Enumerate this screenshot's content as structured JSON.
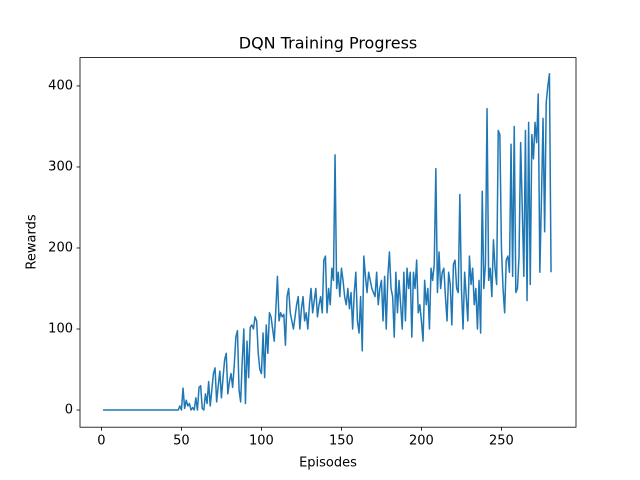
{
  "chart_data": {
    "type": "line",
    "title": "DQN Training Progress",
    "x_label": "Episodes",
    "y_label": "Rewards",
    "color": "#1f77b4",
    "x": [
      1,
      2,
      3,
      4,
      5,
      6,
      7,
      8,
      9,
      10,
      11,
      12,
      13,
      14,
      15,
      16,
      17,
      18,
      19,
      20,
      21,
      22,
      23,
      24,
      25,
      26,
      27,
      28,
      29,
      30,
      31,
      32,
      33,
      34,
      35,
      36,
      37,
      38,
      39,
      40,
      41,
      42,
      43,
      44,
      45,
      46,
      47,
      48,
      49,
      50,
      51,
      52,
      53,
      54,
      55,
      56,
      57,
      58,
      59,
      60,
      61,
      62,
      63,
      64,
      65,
      66,
      67,
      68,
      69,
      70,
      71,
      72,
      73,
      74,
      75,
      76,
      77,
      78,
      79,
      80,
      81,
      82,
      83,
      84,
      85,
      86,
      87,
      88,
      89,
      90,
      91,
      92,
      93,
      94,
      95,
      96,
      97,
      98,
      99,
      100,
      101,
      102,
      103,
      104,
      105,
      106,
      107,
      108,
      109,
      110,
      111,
      112,
      113,
      114,
      115,
      116,
      117,
      118,
      119,
      120,
      121,
      122,
      123,
      124,
      125,
      126,
      127,
      128,
      129,
      130,
      131,
      132,
      133,
      134,
      135,
      136,
      137,
      138,
      139,
      140,
      141,
      142,
      143,
      144,
      145,
      146,
      147,
      148,
      149,
      150,
      151,
      152,
      153,
      154,
      155,
      156,
      157,
      158,
      159,
      160,
      161,
      162,
      163,
      164,
      165,
      166,
      167,
      168,
      169,
      170,
      171,
      172,
      173,
      174,
      175,
      176,
      177,
      178,
      179,
      180,
      181,
      182,
      183,
      184,
      185,
      186,
      187,
      188,
      189,
      190,
      191,
      192,
      193,
      194,
      195,
      196,
      197,
      198,
      199,
      200,
      201,
      202,
      203,
      204,
      205,
      206,
      207,
      208,
      209,
      210,
      211,
      212,
      213,
      214,
      215,
      216,
      217,
      218,
      219,
      220,
      221,
      222,
      223,
      224,
      225,
      226,
      227,
      228,
      229,
      230,
      231,
      232,
      233,
      234,
      235,
      236,
      237,
      238,
      239,
      240,
      241,
      242,
      243,
      244,
      245,
      246,
      247,
      248,
      249,
      250,
      251,
      252,
      253,
      254,
      255,
      256,
      257,
      258,
      259,
      260,
      261,
      262,
      263,
      264,
      265,
      266,
      267,
      268,
      269,
      270,
      271,
      272,
      273,
      274,
      275,
      276,
      277,
      278,
      279,
      280,
      281
    ],
    "values": [
      0,
      0,
      0,
      0,
      0,
      0,
      0,
      0,
      0,
      0,
      0,
      0,
      0,
      0,
      0,
      0,
      0,
      0,
      0,
      0,
      0,
      0,
      0,
      0,
      0,
      0,
      0,
      0,
      0,
      0,
      0,
      0,
      0,
      0,
      0,
      0,
      0,
      0,
      0,
      0,
      0,
      0,
      0,
      0,
      0,
      0,
      0,
      0,
      5,
      0,
      27,
      2,
      12,
      5,
      8,
      0,
      3,
      0,
      15,
      0,
      28,
      30,
      2,
      0,
      20,
      8,
      35,
      5,
      25,
      45,
      52,
      10,
      30,
      48,
      15,
      40,
      62,
      70,
      20,
      35,
      45,
      28,
      55,
      90,
      98,
      25,
      10,
      60,
      100,
      8,
      85,
      40,
      102,
      105,
      100,
      115,
      110,
      70,
      50,
      45,
      95,
      40,
      105,
      70,
      120,
      115,
      100,
      85,
      125,
      165,
      110,
      120,
      115,
      118,
      80,
      140,
      150,
      120,
      110,
      100,
      115,
      130,
      140,
      100,
      125,
      140,
      110,
      120,
      100,
      130,
      150,
      120,
      135,
      150,
      115,
      130,
      140,
      120,
      185,
      190,
      120,
      150,
      130,
      175,
      160,
      315,
      150,
      170,
      140,
      175,
      160,
      140,
      130,
      150,
      125,
      145,
      100,
      145,
      170,
      110,
      95,
      140,
      73,
      190,
      165,
      145,
      170,
      160,
      150,
      145,
      140,
      170,
      130,
      150,
      160,
      110,
      165,
      100,
      165,
      195,
      150,
      140,
      90,
      170,
      120,
      160,
      130,
      100,
      170,
      110,
      175,
      150,
      170,
      90,
      170,
      150,
      185,
      120,
      130,
      110,
      85,
      160,
      130,
      150,
      100,
      175,
      160,
      180,
      298,
      145,
      195,
      150,
      170,
      175,
      140,
      110,
      170,
      155,
      105,
      180,
      185,
      150,
      145,
      266,
      150,
      100,
      170,
      140,
      110,
      190,
      155,
      175,
      130,
      150,
      100,
      160,
      95,
      270,
      150,
      180,
      372,
      160,
      175,
      140,
      210,
      175,
      155,
      345,
      340,
      200,
      150,
      120,
      185,
      190,
      170,
      328,
      165,
      350,
      145,
      150,
      190,
      330,
      250,
      165,
      345,
      135,
      355,
      155,
      340,
      310,
      355,
      330,
      390,
      170,
      260,
      360,
      220,
      380,
      400,
      415,
      170
    ],
    "xlim": [
      -13.4,
      296.6
    ],
    "ylim": [
      -21.2,
      435
    ],
    "xticks": [
      0,
      50,
      100,
      150,
      200,
      250
    ],
    "yticks": [
      0,
      100,
      200,
      300,
      400
    ]
  }
}
